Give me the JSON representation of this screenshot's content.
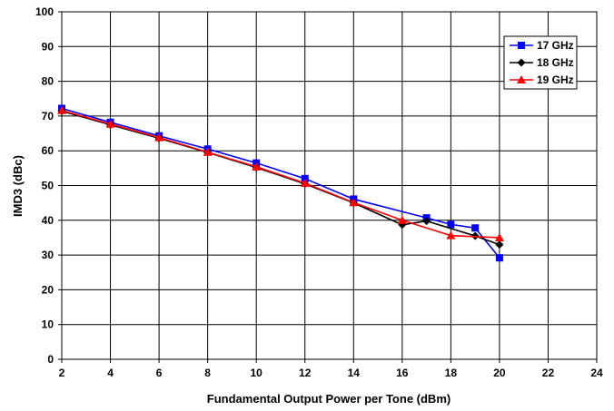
{
  "chart_data": {
    "type": "line",
    "title": "",
    "xlabel": "Fundamental Output Power per Tone (dBm)",
    "ylabel": "IMD3 (dBc)",
    "xlim": [
      2,
      24
    ],
    "ylim": [
      0,
      100
    ],
    "xticks": [
      2,
      4,
      6,
      8,
      10,
      12,
      14,
      16,
      18,
      20,
      22,
      24
    ],
    "yticks": [
      0,
      10,
      20,
      30,
      40,
      50,
      60,
      70,
      80,
      90,
      100
    ],
    "grid": true,
    "legend_position": "top-right",
    "series": [
      {
        "name": "17 GHz",
        "color": "#0000ff",
        "marker": "square",
        "x": [
          2,
          4,
          6,
          8,
          10,
          12,
          14,
          17,
          18,
          19,
          20
        ],
        "y": [
          72.2,
          68.2,
          64.3,
          60.5,
          56.5,
          52,
          46.1,
          40.7,
          38.8,
          37.8,
          29.2
        ]
      },
      {
        "name": "18 GHz",
        "color": "#000000",
        "marker": "diamond",
        "x": [
          2,
          4,
          6,
          8,
          10,
          12,
          14,
          16,
          17,
          19,
          20
        ],
        "y": [
          71.4,
          67.5,
          63.6,
          59.5,
          55.2,
          50.5,
          45,
          38.7,
          39.8,
          35.5,
          33
        ]
      },
      {
        "name": "19 GHz",
        "color": "#ff0000",
        "marker": "triangle",
        "x": [
          2,
          4,
          6,
          8,
          10,
          12,
          14,
          16,
          18,
          20
        ],
        "y": [
          71.6,
          67.7,
          63.8,
          59.6,
          55.4,
          50.7,
          45.1,
          40,
          35.6,
          35
        ]
      }
    ]
  }
}
